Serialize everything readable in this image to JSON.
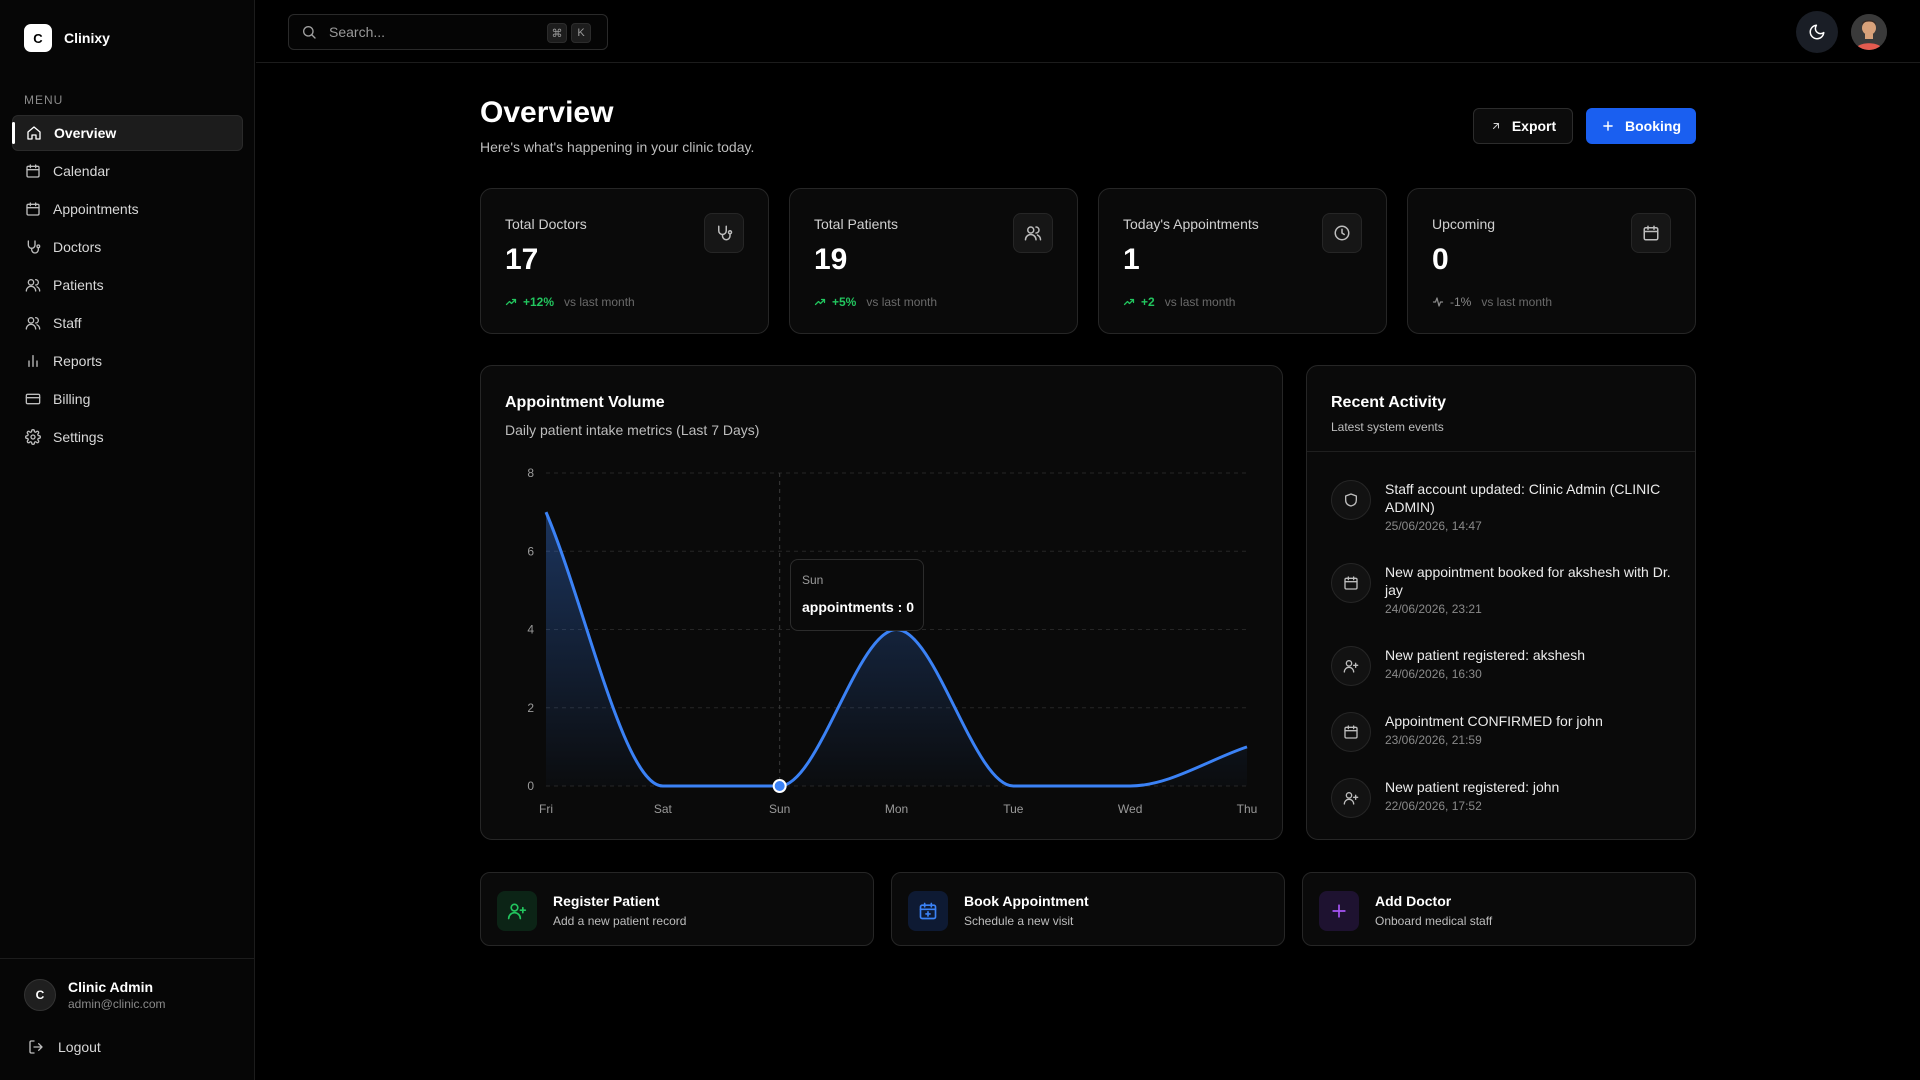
{
  "brand": {
    "logo_letter": "C",
    "name": "Clinixy"
  },
  "sidebar": {
    "menu_label": "MENU",
    "items": [
      {
        "label": "Overview",
        "icon": "home-icon",
        "active": true
      },
      {
        "label": "Calendar",
        "icon": "calendar-icon"
      },
      {
        "label": "Appointments",
        "icon": "calendar-icon"
      },
      {
        "label": "Doctors",
        "icon": "stethoscope-icon"
      },
      {
        "label": "Patients",
        "icon": "users-icon"
      },
      {
        "label": "Staff",
        "icon": "users-icon"
      },
      {
        "label": "Reports",
        "icon": "bar-chart-icon"
      },
      {
        "label": "Billing",
        "icon": "credit-card-icon"
      },
      {
        "label": "Settings",
        "icon": "gear-icon"
      }
    ],
    "user": {
      "initial": "C",
      "name": "Clinic Admin",
      "email": "admin@clinic.com"
    },
    "logout_label": "Logout"
  },
  "topbar": {
    "search_placeholder": "Search...",
    "shortcut_keys": [
      "⌘",
      "K"
    ]
  },
  "header": {
    "title": "Overview",
    "subtitle": "Here's what's happening in your clinic today.",
    "export_label": "Export",
    "booking_label": "Booking"
  },
  "stats": [
    {
      "title": "Total Doctors",
      "value": "17",
      "trend": "+12%",
      "trend_dir": "up",
      "note": "vs last month",
      "icon": "stethoscope-icon"
    },
    {
      "title": "Total Patients",
      "value": "19",
      "trend": "+5%",
      "trend_dir": "up",
      "note": "vs last month",
      "icon": "users-icon"
    },
    {
      "title": "Today's Appointments",
      "value": "1",
      "trend": "+2",
      "trend_dir": "up",
      "note": "vs last month",
      "icon": "clock-icon"
    },
    {
      "title": "Upcoming",
      "value": "0",
      "trend": "-1%",
      "trend_dir": "flat",
      "note": "vs last month",
      "icon": "calendar-icon"
    }
  ],
  "chart_card": {
    "title": "Appointment Volume",
    "subtitle": "Daily patient intake metrics (Last 7 Days)",
    "tooltip": {
      "label": "Sun",
      "value": "appointments : 0"
    }
  },
  "chart_data": {
    "type": "area",
    "categories": [
      "Fri",
      "Sat",
      "Sun",
      "Mon",
      "Tue",
      "Wed",
      "Thu"
    ],
    "series": [
      {
        "values": [
          7,
          0,
          0,
          4,
          0,
          0,
          1
        ]
      }
    ],
    "ylim": [
      0,
      8
    ],
    "yticks": [
      0,
      2,
      4,
      6,
      8
    ],
    "grid": true,
    "line_color": "#3b82f6",
    "highlight_category": "Sun"
  },
  "activity": {
    "title": "Recent Activity",
    "subtitle": "Latest system events",
    "items": [
      {
        "text": "Staff account updated: Clinic Admin (CLINIC ADMIN)",
        "time": "25/06/2026, 14:47",
        "icon": "shield-icon"
      },
      {
        "text": "New appointment booked for akshesh with Dr. jay",
        "time": "24/06/2026, 23:21",
        "icon": "calendar-icon"
      },
      {
        "text": "New patient registered: akshesh",
        "time": "24/06/2026, 16:30",
        "icon": "user-plus-icon"
      },
      {
        "text": "Appointment CONFIRMED for john",
        "time": "23/06/2026, 21:59",
        "icon": "calendar-icon"
      },
      {
        "text": "New patient registered: john",
        "time": "22/06/2026, 17:52",
        "icon": "user-plus-icon"
      }
    ]
  },
  "quick_actions": [
    {
      "title": "Register Patient",
      "subtitle": "Add a new patient record",
      "icon": "user-plus-icon",
      "color": "#22c55e"
    },
    {
      "title": "Book Appointment",
      "subtitle": "Schedule a new visit",
      "icon": "calendar-plus-icon",
      "color": "#3b82f6"
    },
    {
      "title": "Add Doctor",
      "subtitle": "Onboard medical staff",
      "icon": "plus-icon",
      "color": "#a855f7"
    }
  ]
}
